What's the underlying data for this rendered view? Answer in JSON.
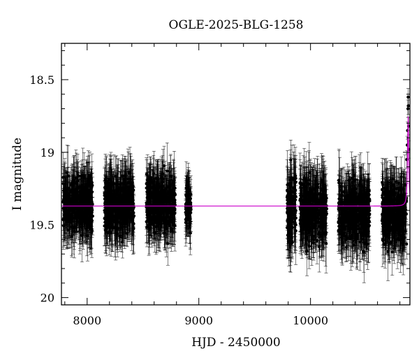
{
  "chart_data": {
    "type": "scatter",
    "title": "OGLE-2025-BLG-1258",
    "xlabel": "HJD - 2450000",
    "ylabel": "I magnitude",
    "xlim": [
      7770,
      10890
    ],
    "ylim": [
      18.25,
      20.05
    ],
    "y_inverted": true,
    "xticks": [
      8000,
      9000,
      10000
    ],
    "xtick_labels": [
      "8000",
      "9000",
      "10000"
    ],
    "yticks": [
      18.5,
      19,
      19.5,
      20
    ],
    "ytick_labels": [
      "18.5",
      "19",
      "19.5",
      "20"
    ],
    "grid": false,
    "legend": "none",
    "series": [
      {
        "kind": "errorbar-points",
        "color": "#000000",
        "seasons": [
          {
            "x_range": [
              7785,
              8050
            ],
            "mag_center": 19.36,
            "mag_scatter": 0.16,
            "err_typical": 0.14
          },
          {
            "x_range": [
              8155,
              8420
            ],
            "mag_center": 19.36,
            "mag_scatter": 0.16,
            "err_typical": 0.14
          },
          {
            "x_range": [
              8530,
              8790
            ],
            "mag_center": 19.36,
            "mag_scatter": 0.16,
            "err_typical": 0.14
          },
          {
            "x_range": [
              8880,
              8930
            ],
            "mag_center": 19.36,
            "mag_scatter": 0.12,
            "err_typical": 0.13
          },
          {
            "x_range": [
              9790,
              9870
            ],
            "mag_center": 19.4,
            "mag_scatter": 0.2,
            "err_typical": 0.16
          },
          {
            "x_range": [
              9905,
              10145
            ],
            "mag_center": 19.4,
            "mag_scatter": 0.18,
            "err_typical": 0.15
          },
          {
            "x_range": [
              10250,
              10530
            ],
            "mag_center": 19.42,
            "mag_scatter": 0.18,
            "err_typical": 0.15
          },
          {
            "x_range": [
              10640,
              10860
            ],
            "mag_center": 19.42,
            "mag_scatter": 0.18,
            "err_typical": 0.15
          }
        ],
        "peak_points": [
          {
            "x": 10862,
            "y": 19.05
          },
          {
            "x": 10866,
            "y": 18.95
          },
          {
            "x": 10869,
            "y": 18.85
          },
          {
            "x": 10872,
            "y": 18.7
          },
          {
            "x": 10874,
            "y": 18.62
          },
          {
            "x": 10876,
            "y": 18.68
          },
          {
            "x": 10878,
            "y": 18.82
          },
          {
            "x": 10880,
            "y": 18.98
          }
        ]
      },
      {
        "kind": "model-line",
        "color": "#cc00cc",
        "baseline": 19.37,
        "peak_x": 10874,
        "peak_mag": 18.75,
        "tE": 10
      }
    ]
  }
}
